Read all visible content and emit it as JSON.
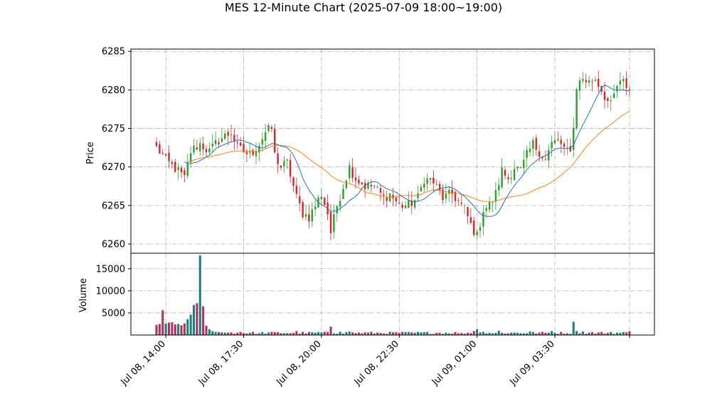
{
  "chart_data": {
    "type": "candlestick",
    "title": "MES 12-Minute Chart (2025-07-09 18:00~19:00)",
    "price_panel": {
      "ylabel": "Price",
      "yticks": [
        6260,
        6265,
        6270,
        6275,
        6280,
        6285
      ],
      "ylim": [
        6258.8,
        6285.3
      ]
    },
    "volume_panel": {
      "ylabel": "Volume",
      "yticks": [
        5000,
        10000,
        15000
      ],
      "ylim": [
        0,
        18500
      ]
    },
    "x_tick_labels": [
      "Jul 08, 14:00",
      "Jul 08, 17:30",
      "Jul 08, 20:00",
      "Jul 08, 22:30",
      "Jul 09, 01:00",
      "Jul 09, 03:30"
    ],
    "x_tick_bar_index": [
      3,
      28,
      53,
      78,
      103,
      128
    ],
    "num_bars": 153,
    "grid": true,
    "colors": {
      "up": "#2ca02c",
      "down": "#d62728",
      "ma_fast": "#1f77b4",
      "ma_slow": "#ff7f0e",
      "volume_up": "#1a7f7f",
      "volume_down": "#b03060"
    },
    "price_anchors": [
      [
        0,
        6272.5
      ],
      [
        4,
        6270.5
      ],
      [
        7,
        6269.5
      ],
      [
        9,
        6268.5
      ],
      [
        11,
        6272.0
      ],
      [
        14,
        6273.0
      ],
      [
        17,
        6272.0
      ],
      [
        20,
        6273.5
      ],
      [
        24,
        6274.5
      ],
      [
        26,
        6272.5
      ],
      [
        30,
        6271.5
      ],
      [
        33,
        6273.0
      ],
      [
        35,
        6274.5
      ],
      [
        37,
        6275.0
      ],
      [
        38,
        6271.5
      ],
      [
        40,
        6270.0
      ],
      [
        42,
        6270.5
      ],
      [
        45,
        6266.0
      ],
      [
        47,
        6264.0
      ],
      [
        49,
        6263.5
      ],
      [
        51,
        6265.0
      ],
      [
        53,
        6266.5
      ],
      [
        55,
        6264.0
      ],
      [
        56,
        6261.5
      ],
      [
        58,
        6265.0
      ],
      [
        60,
        6267.5
      ],
      [
        62,
        6270.0
      ],
      [
        64,
        6268.5
      ],
      [
        67,
        6267.5
      ],
      [
        70,
        6267.5
      ],
      [
        73,
        6266.0
      ],
      [
        75,
        6266.5
      ],
      [
        78,
        6265.0
      ],
      [
        81,
        6265.0
      ],
      [
        84,
        6266.0
      ],
      [
        86,
        6268.5
      ],
      [
        89,
        6268.0
      ],
      [
        92,
        6266.0
      ],
      [
        95,
        6266.5
      ],
      [
        97,
        6265.5
      ],
      [
        99,
        6264.5
      ],
      [
        101,
        6262.5
      ],
      [
        103,
        6261.0
      ],
      [
        105,
        6264.5
      ],
      [
        107,
        6265.0
      ],
      [
        109,
        6266.5
      ],
      [
        111,
        6269.5
      ],
      [
        113,
        6268.5
      ],
      [
        115,
        6270.0
      ],
      [
        117,
        6269.5
      ],
      [
        119,
        6271.5
      ],
      [
        121,
        6273.0
      ],
      [
        123,
        6272.0
      ],
      [
        125,
        6271.0
      ],
      [
        127,
        6273.0
      ],
      [
        129,
        6273.5
      ],
      [
        131,
        6272.0
      ],
      [
        133,
        6272.5
      ],
      [
        134,
        6275.0
      ],
      [
        135,
        6280.5
      ],
      [
        137,
        6281.5
      ],
      [
        139,
        6281.0
      ],
      [
        141,
        6281.5
      ],
      [
        143,
        6280.0
      ],
      [
        145,
        6278.5
      ],
      [
        146,
        6278.0
      ],
      [
        148,
        6280.5
      ],
      [
        150,
        6281.0
      ],
      [
        152,
        6280.0
      ]
    ],
    "volume_spikes": [
      [
        0,
        2300
      ],
      [
        1,
        2500
      ],
      [
        2,
        5600
      ],
      [
        3,
        2600
      ],
      [
        4,
        2800
      ],
      [
        5,
        2900
      ],
      [
        6,
        2400
      ],
      [
        7,
        2500
      ],
      [
        8,
        2200
      ],
      [
        9,
        2600
      ],
      [
        10,
        3600
      ],
      [
        11,
        4600
      ],
      [
        12,
        6800
      ],
      [
        13,
        7200
      ],
      [
        14,
        18000
      ],
      [
        15,
        6500
      ],
      [
        16,
        2100
      ],
      [
        17,
        1300
      ],
      [
        18,
        900
      ],
      [
        19,
        700
      ],
      [
        20,
        650
      ],
      [
        21,
        600
      ],
      [
        24,
        600
      ],
      [
        27,
        700
      ],
      [
        33,
        400
      ],
      [
        37,
        700
      ],
      [
        45,
        900
      ],
      [
        47,
        700
      ],
      [
        53,
        600
      ],
      [
        56,
        1900
      ],
      [
        59,
        750
      ],
      [
        62,
        800
      ],
      [
        98,
        450
      ],
      [
        102,
        900
      ],
      [
        103,
        1300
      ],
      [
        105,
        700
      ],
      [
        110,
        950
      ],
      [
        120,
        800
      ],
      [
        127,
        900
      ],
      [
        134,
        3000
      ],
      [
        135,
        900
      ],
      [
        137,
        800
      ],
      [
        146,
        700
      ],
      [
        152,
        850
      ]
    ]
  }
}
